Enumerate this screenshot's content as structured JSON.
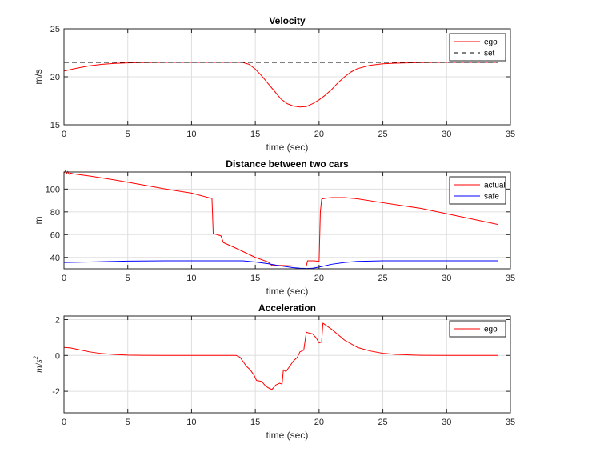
{
  "chart_data": [
    {
      "type": "line",
      "title": "Velocity",
      "xlabel": "time (sec)",
      "ylabel": "m/s",
      "xlim": [
        0,
        35
      ],
      "ylim": [
        15,
        25
      ],
      "xticks": [
        0,
        5,
        10,
        15,
        20,
        25,
        30,
        35
      ],
      "yticks": [
        15,
        20,
        25
      ],
      "grid": true,
      "legend": "top-right",
      "series": [
        {
          "name": "ego",
          "color": "#ff0000",
          "dash": "solid",
          "x": [
            0,
            1,
            2,
            3,
            4,
            5,
            6,
            8,
            10,
            12,
            13,
            14,
            14.5,
            15,
            15.5,
            16,
            16.5,
            17,
            17.5,
            18,
            18.5,
            19,
            19.5,
            20,
            20.5,
            21,
            21.5,
            22,
            22.5,
            23,
            24,
            25,
            26,
            28,
            30,
            32,
            34
          ],
          "y": [
            20.6,
            20.9,
            21.15,
            21.3,
            21.4,
            21.45,
            21.48,
            21.5,
            21.5,
            21.5,
            21.5,
            21.5,
            21.3,
            20.8,
            20.1,
            19.3,
            18.5,
            17.7,
            17.2,
            16.95,
            16.85,
            16.9,
            17.2,
            17.6,
            18.1,
            18.7,
            19.4,
            20.0,
            20.5,
            20.85,
            21.2,
            21.35,
            21.42,
            21.48,
            21.5,
            21.5,
            21.5
          ]
        },
        {
          "name": "set",
          "color": "#000000",
          "dash": "dashed",
          "x": [
            0,
            34
          ],
          "y": [
            21.5,
            21.5
          ]
        }
      ]
    },
    {
      "type": "line",
      "title": "Distance between two cars",
      "xlabel": "time (sec)",
      "ylabel": "m",
      "xlim": [
        0,
        35
      ],
      "ylim": [
        30,
        115
      ],
      "xticks": [
        0,
        5,
        10,
        15,
        20,
        25,
        30,
        35
      ],
      "yticks": [
        40,
        60,
        80,
        100
      ],
      "grid": true,
      "legend": "top-right",
      "series": [
        {
          "name": "actual",
          "color": "#ff0000",
          "dash": "solid",
          "x": [
            0,
            0.1,
            0.2,
            0.3,
            0.4,
            0.5,
            0.7,
            1,
            2,
            4,
            6,
            8,
            10,
            11.5,
            11.6,
            11.7,
            12.3,
            12.5,
            13.5,
            15,
            16,
            16.3,
            17,
            18,
            19,
            19.1,
            19.3,
            19.6,
            20,
            20.1,
            20.2,
            20.3,
            20.5,
            21,
            22,
            23,
            25,
            28,
            31,
            34
          ],
          "y": [
            114,
            116,
            113.5,
            115.5,
            113,
            114,
            113.5,
            113,
            111.5,
            108,
            104,
            100,
            96.5,
            92,
            92,
            61,
            59,
            53,
            48,
            40,
            36,
            33,
            33,
            32.5,
            32.5,
            37,
            37,
            37,
            36.5,
            80,
            91,
            91.5,
            92,
            92.5,
            92.5,
            91.5,
            88,
            83,
            76,
            69
          ]
        },
        {
          "name": "safe",
          "color": "#0000ff",
          "dash": "solid",
          "x": [
            0,
            2,
            5,
            8,
            12,
            14,
            15,
            16,
            17,
            18,
            18.5,
            19,
            19.5,
            20,
            21,
            22,
            23,
            25,
            28,
            31,
            34
          ],
          "y": [
            35.5,
            36,
            36.8,
            37,
            37,
            37,
            36,
            34.5,
            32.5,
            31,
            30.5,
            30.3,
            30.5,
            31.5,
            34,
            35.5,
            36.5,
            37,
            37,
            37,
            37
          ]
        }
      ]
    },
    {
      "type": "line",
      "title": "Acceleration",
      "xlabel": "time (sec)",
      "ylabel": "m/s^2",
      "xlim": [
        0,
        35
      ],
      "ylim": [
        -3.2,
        2.2
      ],
      "xticks": [
        0,
        5,
        10,
        15,
        20,
        25,
        30,
        35
      ],
      "yticks": [
        -2,
        0,
        2
      ],
      "ytick_labels": [
        "-2",
        "0",
        "2"
      ],
      "grid": true,
      "legend": "top-right",
      "series": [
        {
          "name": "ego",
          "color": "#ff0000",
          "dash": "solid",
          "x": [
            0,
            0.5,
            1,
            2,
            3,
            4,
            5,
            6,
            8,
            10,
            12,
            13.5,
            13.8,
            14,
            14.3,
            14.6,
            14.9,
            15.1,
            15.5,
            15.8,
            16,
            16.3,
            16.6,
            16.9,
            17.1,
            17.2,
            17.4,
            17.6,
            17.8,
            18,
            18.3,
            18.5,
            18.8,
            19,
            19.2,
            19.5,
            19.8,
            20,
            20.2,
            20.3,
            20.5,
            21,
            21.5,
            22,
            23,
            24,
            25,
            26,
            27,
            28,
            30,
            32,
            34
          ],
          "y": [
            0.45,
            0.42,
            0.35,
            0.2,
            0.1,
            0.05,
            0.02,
            0.01,
            0,
            0,
            0,
            0,
            -0.1,
            -0.3,
            -0.6,
            -0.8,
            -1.1,
            -1.4,
            -1.45,
            -1.7,
            -1.8,
            -1.9,
            -1.65,
            -1.55,
            -1.6,
            -0.8,
            -0.9,
            -0.7,
            -0.5,
            -0.3,
            -0.1,
            0.2,
            0.3,
            1.3,
            1.25,
            1.2,
            0.95,
            0.7,
            0.75,
            1.8,
            1.7,
            1.45,
            1.15,
            0.85,
            0.45,
            0.25,
            0.12,
            0.06,
            0.03,
            0.01,
            0,
            0,
            0
          ]
        }
      ]
    }
  ]
}
